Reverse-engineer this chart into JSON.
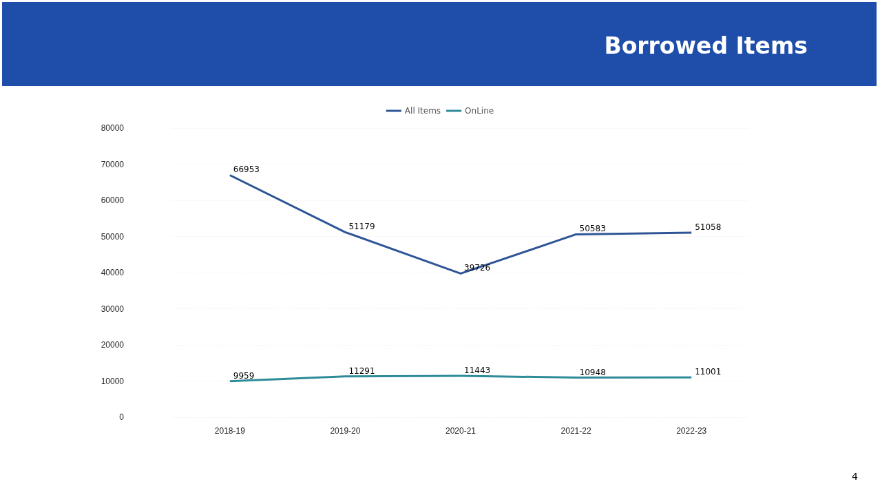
{
  "chart_data": {
    "type": "line",
    "title": "Borrowed Items",
    "categories": [
      "2018-19",
      "2019-20",
      "2020-21",
      "2021-22",
      "2022-23"
    ],
    "series": [
      {
        "name": "All Items",
        "color": "#2f5597",
        "values": [
          66953,
          51179,
          39726,
          50583,
          51058
        ]
      },
      {
        "name": "OnLine",
        "color": "#2e8b9a",
        "values": [
          9959,
          11291,
          11443,
          10948,
          11001
        ]
      }
    ],
    "ylim": [
      0,
      80000
    ],
    "yticks": [
      0,
      10000,
      20000,
      30000,
      40000,
      50000,
      60000,
      70000,
      80000
    ],
    "grid": "y",
    "legend": "top",
    "data_labels": true,
    "marker": "none",
    "line_style": "solid",
    "annotations": [
      "4"
    ]
  }
}
